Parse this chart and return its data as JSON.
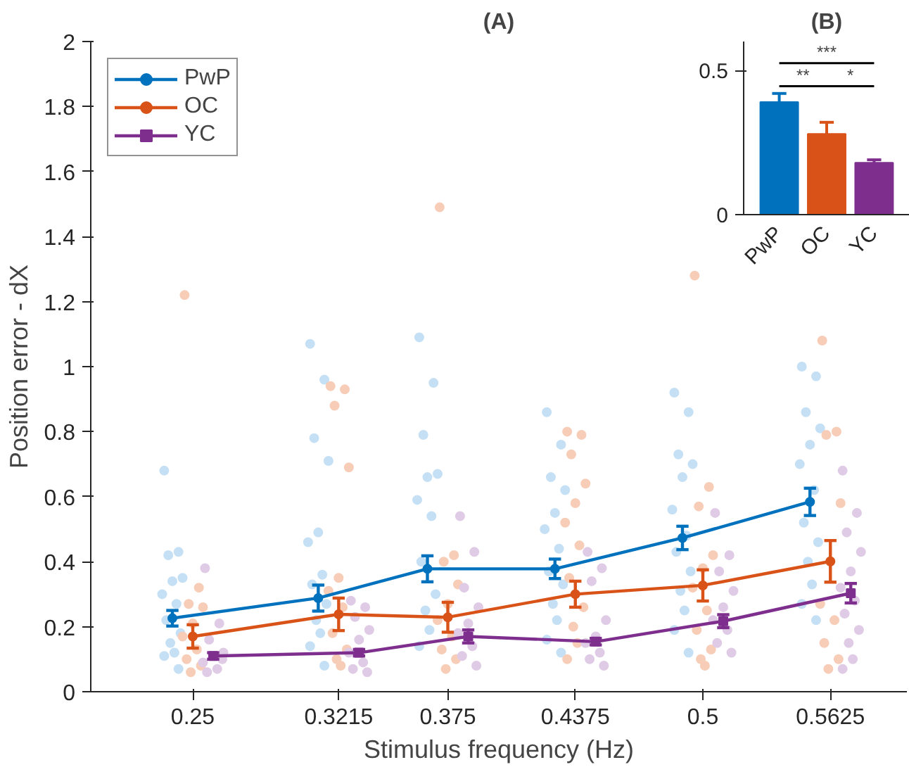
{
  "chart_data": [
    {
      "type": "line",
      "title": "(A)",
      "xlabel": "Stimulus frequency (Hz)",
      "ylabel": "Position error - dX",
      "xlim": [
        0.2,
        0.6
      ],
      "xticks": [
        0.25,
        0.3215,
        0.375,
        0.4375,
        0.5,
        0.5625
      ],
      "ylim": [
        0,
        2
      ],
      "yticks": [
        0,
        0.2,
        0.4,
        0.6,
        0.8,
        1,
        1.2,
        1.4,
        1.6,
        1.8,
        2
      ],
      "grid": false,
      "legend": "top left",
      "line_style": "solid",
      "series": [
        {
          "type": "scatter",
          "color": "#c5e0f5",
          "marker": "circle",
          "x": [
            0.236,
            0.243,
            0.238,
            0.245,
            0.24,
            0.235,
            0.242,
            0.237,
            0.244,
            0.239,
            0.241,
            0.236,
            0.243,
            0.3075,
            0.3145,
            0.3095,
            0.3165,
            0.3115,
            0.3065,
            0.3135,
            0.3085,
            0.3155,
            0.3105,
            0.3125,
            0.3075,
            0.3145,
            0.361,
            0.368,
            0.363,
            0.37,
            0.365,
            0.36,
            0.367,
            0.362,
            0.369,
            0.364,
            0.366,
            0.361,
            0.4235,
            0.4305,
            0.4255,
            0.4325,
            0.4275,
            0.4225,
            0.4295,
            0.4245,
            0.4315,
            0.4265,
            0.4285,
            0.4235,
            0.4305,
            0.486,
            0.493,
            0.488,
            0.495,
            0.49,
            0.485,
            0.492,
            0.487,
            0.494,
            0.489,
            0.491,
            0.486,
            0.493,
            0.5485,
            0.5555,
            0.5505,
            0.5575,
            0.5525,
            0.5475,
            0.5545,
            0.5495,
            0.5565,
            0.5515,
            0.5535,
            0.5485,
            0.5555
          ],
          "values": [
            0.68,
            0.43,
            0.42,
            0.35,
            0.34,
            0.3,
            0.27,
            0.22,
            0.18,
            0.15,
            0.12,
            0.11,
            0.07,
            1.07,
            0.96,
            0.78,
            0.71,
            0.49,
            0.46,
            0.36,
            0.33,
            0.27,
            0.22,
            0.18,
            0.14,
            0.08,
            1.09,
            0.95,
            0.79,
            0.67,
            0.66,
            0.59,
            0.54,
            0.4,
            0.3,
            0.25,
            0.19,
            0.14,
            0.86,
            0.76,
            0.66,
            0.62,
            0.55,
            0.5,
            0.44,
            0.37,
            0.33,
            0.27,
            0.22,
            0.16,
            0.12,
            0.92,
            0.86,
            0.73,
            0.7,
            0.66,
            0.56,
            0.48,
            0.43,
            0.37,
            0.31,
            0.25,
            0.19,
            0.12,
            1.0,
            0.97,
            0.86,
            0.81,
            0.76,
            0.7,
            0.62,
            0.52,
            0.46,
            0.4,
            0.33,
            0.27,
            0.22
          ]
        },
        {
          "type": "scatter",
          "color": "#f7cdb8",
          "marker": "circle",
          "x": [
            0.246,
            0.253,
            0.248,
            0.255,
            0.25,
            0.245,
            0.252,
            0.247,
            0.254,
            0.249,
            0.3175,
            0.3245,
            0.3195,
            0.3265,
            0.3215,
            0.3165,
            0.3235,
            0.3185,
            0.3255,
            0.3205,
            0.3225,
            0.371,
            0.378,
            0.373,
            0.38,
            0.375,
            0.37,
            0.377,
            0.372,
            0.379,
            0.374,
            0.4335,
            0.4405,
            0.4355,
            0.4425,
            0.4375,
            0.4325,
            0.4395,
            0.4345,
            0.4415,
            0.4365,
            0.4385,
            0.4335,
            0.496,
            0.503,
            0.498,
            0.505,
            0.5,
            0.495,
            0.502,
            0.497,
            0.504,
            0.499,
            0.501,
            0.5585,
            0.5655,
            0.5605,
            0.5675,
            0.5625,
            0.5575,
            0.5645,
            0.5595,
            0.5665,
            0.5615
          ],
          "values": [
            1.22,
            0.32,
            0.27,
            0.26,
            0.21,
            0.17,
            0.13,
            0.1,
            0.08,
            0.06,
            0.94,
            0.93,
            0.88,
            0.69,
            0.35,
            0.31,
            0.26,
            0.18,
            0.13,
            0.1,
            0.08,
            1.49,
            0.42,
            0.4,
            0.33,
            0.27,
            0.22,
            0.17,
            0.13,
            0.1,
            0.07,
            0.8,
            0.79,
            0.73,
            0.64,
            0.58,
            0.52,
            0.45,
            0.35,
            0.26,
            0.2,
            0.15,
            0.1,
            1.28,
            0.63,
            0.57,
            0.42,
            0.38,
            0.32,
            0.25,
            0.19,
            0.13,
            0.1,
            0.08,
            1.08,
            0.8,
            0.79,
            0.58,
            0.4,
            0.27,
            0.22,
            0.15,
            0.1,
            0.07
          ]
        },
        {
          "type": "scatter",
          "color": "#e0cbe6",
          "marker": "circle",
          "x": [
            0.256,
            0.263,
            0.258,
            0.265,
            0.2645,
            0.255,
            0.262,
            0.257,
            0.3275,
            0.3345,
            0.3295,
            0.3365,
            0.3315,
            0.3265,
            0.3335,
            0.3285,
            0.3355,
            0.381,
            0.388,
            0.383,
            0.39,
            0.385,
            0.38,
            0.387,
            0.382,
            0.389,
            0.4435,
            0.4505,
            0.4455,
            0.4525,
            0.4475,
            0.4425,
            0.4495,
            0.4445,
            0.4515,
            0.506,
            0.513,
            0.508,
            0.515,
            0.51,
            0.505,
            0.512,
            0.507,
            0.514,
            0.5685,
            0.5755,
            0.5705,
            0.5775,
            0.5725,
            0.5675,
            0.5745,
            0.5695,
            0.5765,
            0.5715,
            0.5735,
            0.5685
          ],
          "values": [
            0.38,
            0.21,
            0.16,
            0.12,
            0.1,
            0.09,
            0.07,
            0.06,
            0.28,
            0.26,
            0.23,
            0.19,
            0.16,
            0.12,
            0.09,
            0.07,
            0.06,
            0.54,
            0.43,
            0.32,
            0.26,
            0.21,
            0.18,
            0.14,
            0.11,
            0.08,
            0.43,
            0.38,
            0.34,
            0.22,
            0.17,
            0.15,
            0.12,
            0.1,
            0.08,
            0.55,
            0.42,
            0.37,
            0.31,
            0.26,
            0.22,
            0.19,
            0.15,
            0.12,
            0.68,
            0.55,
            0.49,
            0.43,
            0.37,
            0.32,
            0.28,
            0.24,
            0.19,
            0.15,
            0.1,
            0.07
          ]
        },
        {
          "name": "PwP",
          "color": "#0072bd",
          "marker": "circle",
          "x": [
            0.24,
            0.3115,
            0.365,
            0.4275,
            0.49,
            0.5525
          ],
          "values": [
            0.226,
            0.288,
            0.378,
            0.378,
            0.473,
            0.584
          ],
          "errors": [
            0.024,
            0.04,
            0.04,
            0.03,
            0.036,
            0.042
          ]
        },
        {
          "name": "OC",
          "color": "#d95319",
          "marker": "circle",
          "x": [
            0.25,
            0.3215,
            0.375,
            0.4375,
            0.5,
            0.5625
          ],
          "values": [
            0.17,
            0.238,
            0.229,
            0.3,
            0.327,
            0.401
          ],
          "errors": [
            0.036,
            0.05,
            0.046,
            0.04,
            0.048,
            0.064
          ]
        },
        {
          "name": "YC",
          "color": "#7e2f8e",
          "marker": "square",
          "x": [
            0.26,
            0.3315,
            0.385,
            0.4475,
            0.51,
            0.5725
          ],
          "values": [
            0.11,
            0.12,
            0.17,
            0.154,
            0.217,
            0.303
          ],
          "errors": [
            0.01,
            0.01,
            0.02,
            0.01,
            0.02,
            0.03
          ]
        }
      ]
    },
    {
      "type": "bar",
      "title": "(B)",
      "categories": [
        "PwP",
        "OC",
        "YC"
      ],
      "values": [
        0.39,
        0.28,
        0.18
      ],
      "colors": [
        "#0072bd",
        "#d95319",
        "#7e2f8e"
      ],
      "errors": [
        [
          0.39,
          0.42
        ],
        [
          0.28,
          0.32
        ],
        [
          0.18,
          0.19
        ]
      ],
      "ylim": [
        0,
        0.6
      ],
      "yticks": [
        0,
        0.5
      ],
      "grid": false,
      "annotations": [
        "***",
        "**",
        "*"
      ]
    }
  ]
}
